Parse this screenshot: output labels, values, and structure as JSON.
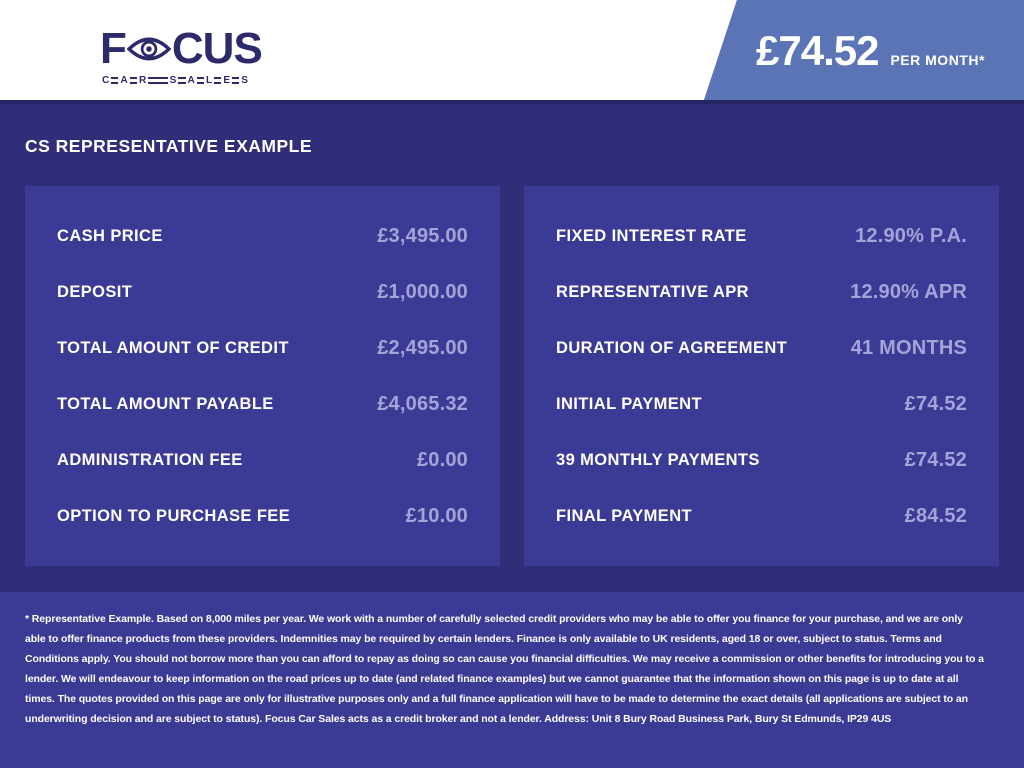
{
  "header": {
    "logo": {
      "word_start": "F",
      "word_end": "CUS",
      "subtitle": "CAR SALES"
    },
    "price_banner": {
      "amount": "£74.52",
      "period": "PER MONTH*"
    }
  },
  "section_title": "CS REPRESENTATIVE EXAMPLE",
  "panels": {
    "left": {
      "rows": [
        {
          "label": "CASH PRICE",
          "value": "£3,495.00"
        },
        {
          "label": "DEPOSIT",
          "value": "£1,000.00"
        },
        {
          "label": "TOTAL AMOUNT OF CREDIT",
          "value": "£2,495.00"
        },
        {
          "label": "TOTAL AMOUNT PAYABLE",
          "value": "£4,065.32"
        },
        {
          "label": "ADMINISTRATION FEE",
          "value": "£0.00"
        },
        {
          "label": "OPTION TO PURCHASE FEE",
          "value": "£10.00"
        }
      ]
    },
    "right": {
      "rows": [
        {
          "label": "FIXED INTEREST RATE",
          "value": "12.90% P.A."
        },
        {
          "label": "REPRESENTATIVE APR",
          "value": "12.90% APR"
        },
        {
          "label": "DURATION OF AGREEMENT",
          "value": "41 MONTHS"
        },
        {
          "label": "INITIAL PAYMENT",
          "value": "£74.52"
        },
        {
          "label": "39 MONTHLY PAYMENTS",
          "value": "£74.52"
        },
        {
          "label": "FINAL PAYMENT",
          "value": "£84.52"
        }
      ]
    }
  },
  "disclaimer": "* Representative Example. Based on 8,000 miles per year. We work with a number of carefully selected credit providers who may be able to offer you finance for your purchase, and we are only able to offer finance products from these providers. Indemnities may be required by certain lenders. Finance is only available to UK residents, aged 18 or over, subject to status. Terms and Conditions apply. You should not borrow more than you can afford to repay as doing so can cause you financial difficulties. We may receive a commission or other benefits for introducing you to a lender. We will endeavour to keep information on the road prices up to date (and related finance examples) but we cannot guarantee that the information shown on this page is up to date at all times. The quotes provided on this page are only for illustrative purposes only and a full finance application will have to be made to determine the exact details (all applications are subject to an underwriting decision and are subject to status). Focus Car Sales acts as a credit broker and not a lender. Address: Unit 8 Bury Road Business Park, Bury St Edmunds, IP29 4US",
  "colors": {
    "page_background": "#302e78",
    "panel_background": "#3b3a94",
    "banner_blue": "#5b74b6",
    "value_text": "#a5a4d8",
    "logo_navy": "#2b2a6b",
    "label_text": "#ffffff"
  }
}
